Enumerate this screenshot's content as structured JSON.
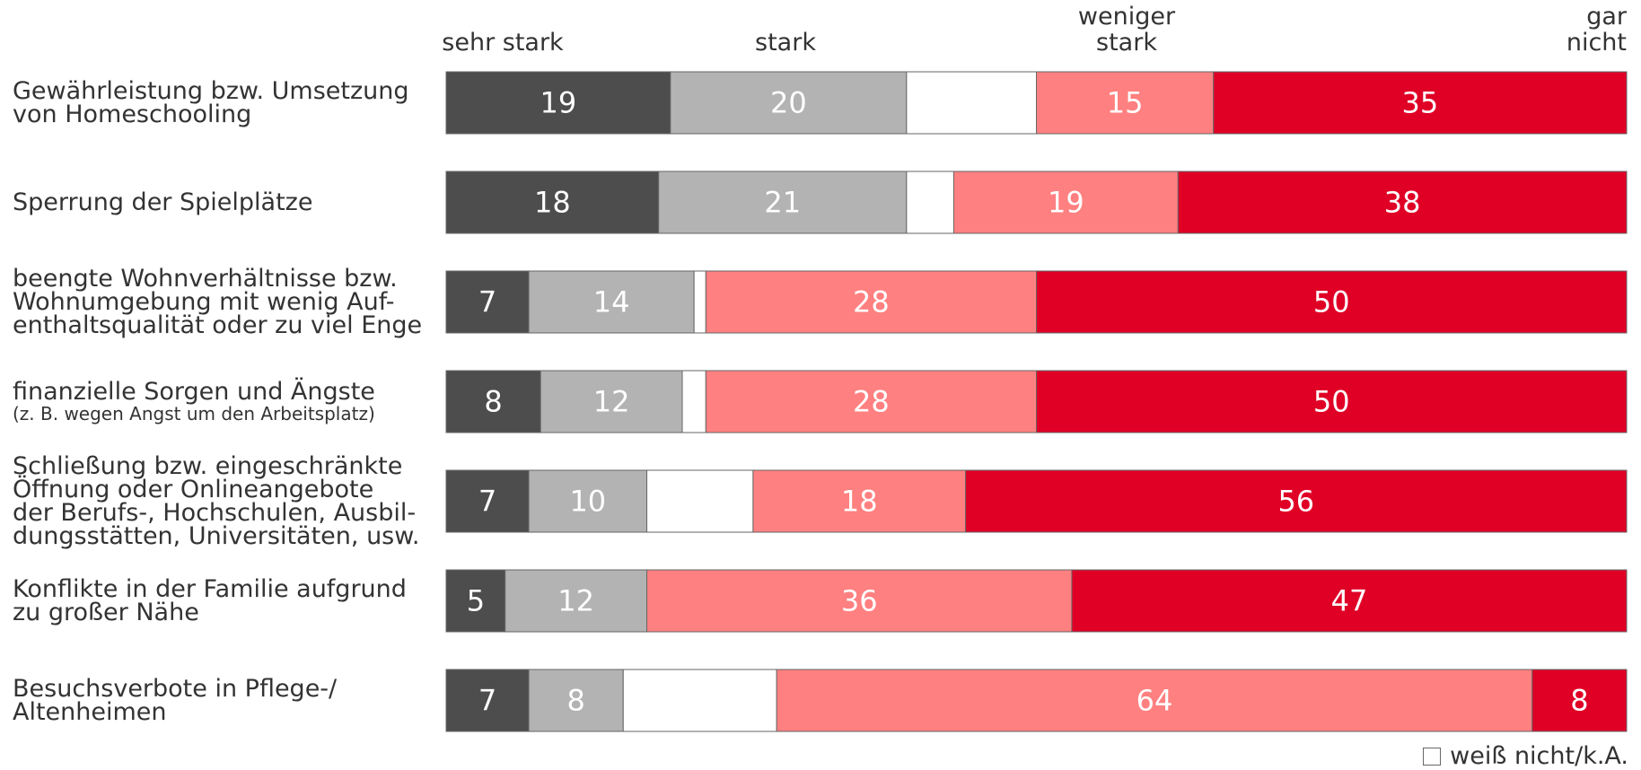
{
  "chart_data": {
    "type": "bar",
    "orientation": "horizontal",
    "stacked": true,
    "percent_stacked": true,
    "title": "",
    "xlabel": "",
    "ylabel": "",
    "categories": [
      {
        "label": "Gewährleistung bzw. Umsetzung von Homeschooling",
        "note": ""
      },
      {
        "label": "Sperrung der Spielplätze",
        "note": ""
      },
      {
        "label": "beengte Wohnverhältnisse bzw. Wohnumgebung mit wenig Aufenthaltsqualität oder zu viel Enge",
        "note": ""
      },
      {
        "label": "finanzielle Sorgen und Ängste",
        "note": "(z. B. wegen Angst um den Arbeitsplatz)"
      },
      {
        "label": "Schließung bzw. eingeschränkte Öffnung  oder Onlineangebote der Berufs-, Hochschulen, Ausbildungsstätten, Universitäten, usw.",
        "note": ""
      },
      {
        "label": "Konflikte in der Familie aufgrund zu großer Nähe",
        "note": ""
      },
      {
        "label": "Besuchsverbote in Pflege-/ Altenheimen",
        "note": ""
      }
    ],
    "series": [
      {
        "name": "sehr stark",
        "color": "#4d4d4d",
        "label_color": "#ffffff",
        "values": [
          19,
          18,
          7,
          8,
          7,
          5,
          7
        ]
      },
      {
        "name": "stark",
        "color": "#b3b3b3",
        "label_color": "#ffffff",
        "values": [
          20,
          21,
          14,
          12,
          10,
          12,
          8
        ]
      },
      {
        "name": "weiß nicht/k.A.",
        "color": "#ffffff",
        "label_color": "#333333",
        "values": [
          11,
          4,
          1,
          2,
          9,
          0,
          13
        ],
        "show_labels": false
      },
      {
        "name": "weniger stark",
        "color": "#ff8080",
        "label_color": "#ffffff",
        "values": [
          15,
          19,
          28,
          28,
          18,
          36,
          64
        ]
      },
      {
        "name": "gar nicht",
        "color": "#e00026",
        "label_color": "#ffffff",
        "values": [
          35,
          38,
          50,
          50,
          56,
          47,
          8
        ]
      }
    ],
    "column_headers": [
      {
        "lines": [
          "sehr stark"
        ]
      },
      {
        "lines": [
          "stark"
        ]
      },
      {
        "lines": [
          "weniger",
          "stark"
        ]
      },
      {
        "lines": [
          "gar",
          "nicht"
        ]
      }
    ],
    "legend": {
      "label": "weiß nicht/k.A.",
      "position": "bottom-right"
    },
    "xlim": [
      0,
      100
    ],
    "grid": false
  }
}
